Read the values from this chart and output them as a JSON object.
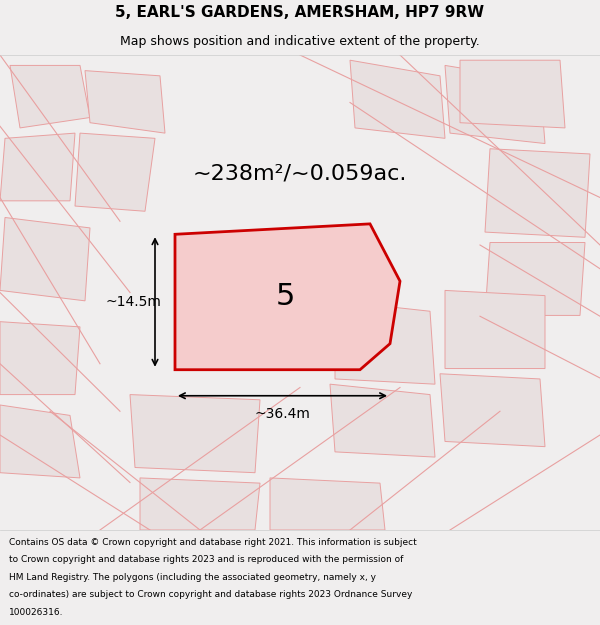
{
  "title_line1": "5, EARL'S GARDENS, AMERSHAM, HP7 9RW",
  "title_line2": "Map shows position and indicative extent of the property.",
  "area_text": "~238m²/~0.059ac.",
  "plot_number": "5",
  "dim_width": "~36.4m",
  "dim_height": "~14.5m",
  "footer_lines": [
    "Contains OS data © Crown copyright and database right 2021. This information is subject",
    "to Crown copyright and database rights 2023 and is reproduced with the permission of",
    "HM Land Registry. The polygons (including the associated geometry, namely x, y",
    "co-ordinates) are subject to Crown copyright and database rights 2023 Ordnance Survey",
    "100026316."
  ],
  "bg_color": "#f0eeee",
  "map_bg_color": "#f7f5f5",
  "plot_fill_color": "#f5cccc",
  "plot_edge_color": "#cc0000",
  "neighbor_fill_color": "#e8e0e0",
  "neighbor_edge_color": "#e8a0a0",
  "title_bg_color": "#ffffff",
  "footer_bg_color": "#ffffff"
}
